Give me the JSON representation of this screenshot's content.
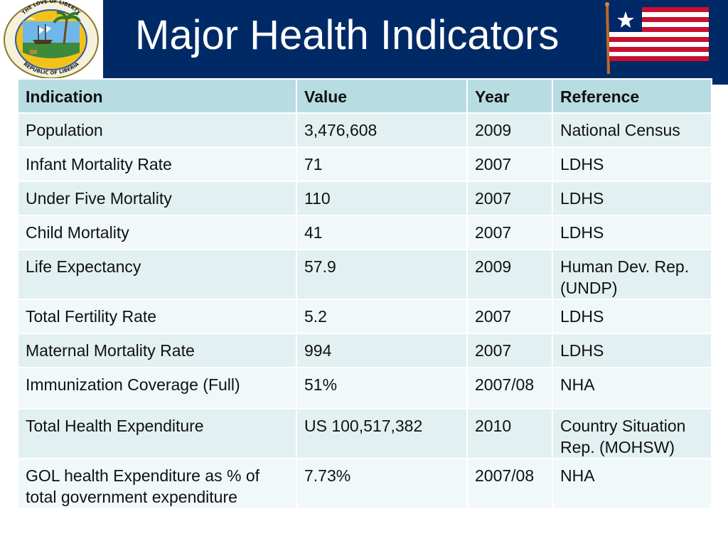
{
  "slide": {
    "title": "Major Health Indicators",
    "seal": {
      "top_text": "THE LOVE OF LIBERTY",
      "bottom_text": "REPUBLIC OF LIBERIA"
    },
    "flag_colors": {
      "red": "#c8102e",
      "white": "#ffffff",
      "blue": "#002868"
    }
  },
  "table": {
    "headers": [
      "Indication",
      "Value",
      "Year",
      "Reference"
    ],
    "rows": [
      [
        "Population",
        "3,476,608",
        "2009",
        "National  Census"
      ],
      [
        "Infant Mortality Rate",
        "71",
        "2007",
        "LDHS"
      ],
      [
        "Under Five Mortality",
        "110",
        "2007",
        "LDHS"
      ],
      [
        "Child Mortality",
        "41",
        "2007",
        "LDHS"
      ],
      [
        "Life Expectancy",
        "57.9",
        "2009",
        "Human Dev. Rep. (UNDP)"
      ],
      [
        "Total Fertility Rate",
        "5.2",
        "2007",
        "LDHS"
      ],
      [
        "Maternal Mortality Rate",
        "994",
        "2007",
        "LDHS"
      ],
      [
        "Immunization Coverage (Full)",
        "51%",
        "2007/08",
        "NHA"
      ],
      [
        "Total Health Expenditure",
        "US 100,517,382",
        "2010",
        "Country Situation Rep. (MOHSW)"
      ],
      [
        "GOL health Expenditure as % of total government  expenditure",
        "7.73%",
        "2007/08",
        "NHA"
      ]
    ]
  }
}
